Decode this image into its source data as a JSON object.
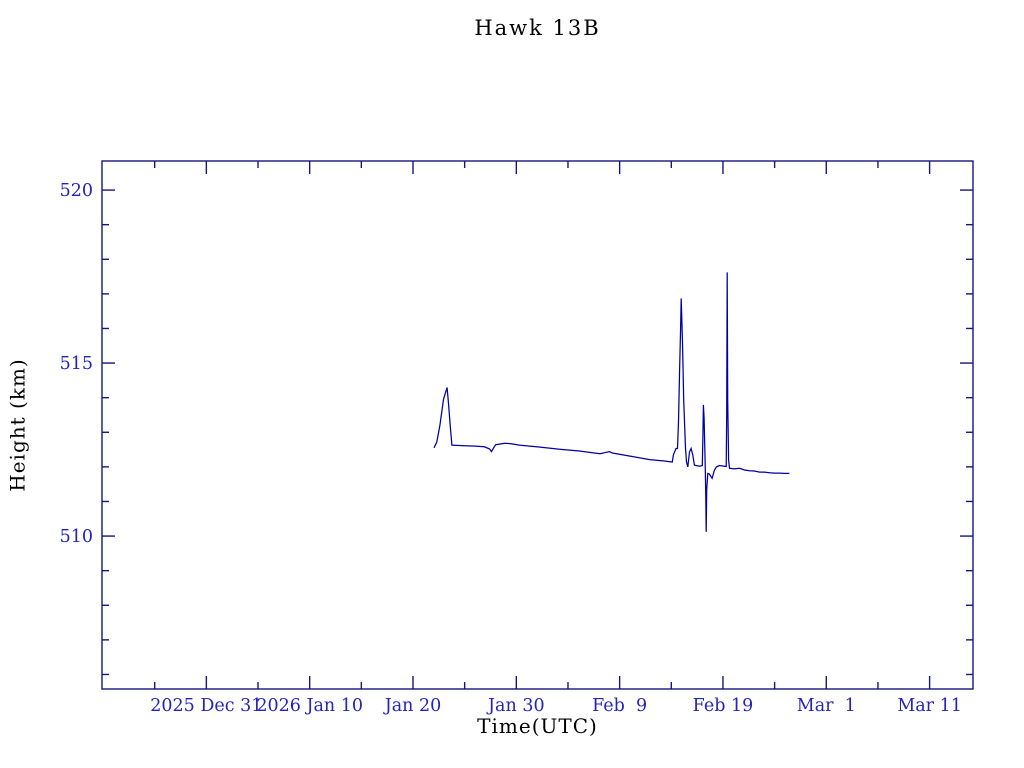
{
  "page": {
    "background": "#ffffff"
  },
  "chart_data": {
    "type": "line",
    "title": "Hawk 13B",
    "xlabel": "Time(UTC)",
    "ylabel": "Height (km)",
    "x_time_origin": "days since 2025 Dec 31 00:00 UTC",
    "xlim": [
      -10.1,
      74.2
    ],
    "ylim": [
      505.58,
      520.84
    ],
    "grid": false,
    "legend": "none",
    "axis_color": "#16167e",
    "text_color": "#2323be",
    "line_color": "#0000a0",
    "x_major_ticks": [
      {
        "t": 0,
        "label": "2025 Dec 31"
      },
      {
        "t": 10,
        "label": "2026 Jan 10"
      },
      {
        "t": 20,
        "label": "Jan 20"
      },
      {
        "t": 30,
        "label": "Jan 30"
      },
      {
        "t": 40,
        "label": "Feb  9"
      },
      {
        "t": 50,
        "label": "Feb 19"
      },
      {
        "t": 60,
        "label": "Mar  1"
      },
      {
        "t": 70,
        "label": "Mar 11"
      }
    ],
    "x_minor_ticks": [
      -5,
      5,
      15,
      25,
      35,
      45,
      55,
      65
    ],
    "y_major_ticks": [
      510,
      515,
      520
    ],
    "y_minor_ticks": [
      506,
      507,
      508,
      509,
      511,
      512,
      513,
      514,
      516,
      517,
      518,
      519
    ],
    "series": [
      {
        "name": "height-km",
        "points": [
          [
            22.03,
            512.55
          ],
          [
            22.3,
            512.72
          ],
          [
            22.6,
            513.2
          ],
          [
            22.95,
            513.95
          ],
          [
            23.1,
            514.1
          ],
          [
            23.3,
            514.29
          ],
          [
            23.45,
            513.8
          ],
          [
            23.6,
            513.2
          ],
          [
            23.77,
            512.63
          ],
          [
            24.2,
            512.62
          ],
          [
            25.0,
            512.61
          ],
          [
            26.0,
            512.6
          ],
          [
            26.9,
            512.58
          ],
          [
            27.4,
            512.52
          ],
          [
            27.6,
            512.44
          ],
          [
            27.8,
            512.55
          ],
          [
            28.0,
            512.64
          ],
          [
            28.9,
            512.68
          ],
          [
            29.5,
            512.67
          ],
          [
            30.3,
            512.63
          ],
          [
            32.3,
            512.57
          ],
          [
            34.2,
            512.51
          ],
          [
            36.1,
            512.46
          ],
          [
            38.1,
            512.38
          ],
          [
            38.7,
            512.42
          ],
          [
            39.0,
            512.44
          ],
          [
            39.3,
            512.4
          ],
          [
            41.0,
            512.31
          ],
          [
            42.9,
            512.21
          ],
          [
            44.3,
            512.17
          ],
          [
            45.1,
            512.14
          ],
          [
            45.2,
            512.35
          ],
          [
            45.45,
            512.53
          ],
          [
            45.6,
            512.53
          ],
          [
            45.7,
            513.3
          ],
          [
            45.8,
            514.8
          ],
          [
            45.9,
            516.0
          ],
          [
            45.96,
            516.87
          ],
          [
            46.08,
            515.6
          ],
          [
            46.2,
            513.93
          ],
          [
            46.37,
            512.54
          ],
          [
            46.47,
            512.14
          ],
          [
            46.6,
            512.0
          ],
          [
            46.76,
            512.43
          ],
          [
            46.92,
            512.53
          ],
          [
            47.08,
            512.34
          ],
          [
            47.24,
            512.05
          ],
          [
            47.73,
            512.02
          ],
          [
            48.0,
            512.04
          ],
          [
            48.06,
            512.87
          ],
          [
            48.11,
            513.79
          ],
          [
            48.17,
            513.41
          ],
          [
            48.28,
            512.05
          ],
          [
            48.33,
            511.33
          ],
          [
            48.38,
            510.12
          ],
          [
            48.43,
            511.33
          ],
          [
            48.53,
            511.81
          ],
          [
            48.69,
            511.79
          ],
          [
            48.95,
            511.67
          ],
          [
            49.18,
            511.91
          ],
          [
            49.37,
            512.0
          ],
          [
            49.66,
            512.04
          ],
          [
            50.31,
            512.01
          ],
          [
            50.36,
            513.5
          ],
          [
            50.41,
            517.62
          ],
          [
            50.46,
            513.93
          ],
          [
            50.55,
            512.2
          ],
          [
            50.63,
            511.96
          ],
          [
            51.11,
            511.94
          ],
          [
            51.6,
            511.96
          ],
          [
            52.08,
            511.91
          ],
          [
            52.56,
            511.89
          ],
          [
            53.05,
            511.88
          ],
          [
            53.53,
            511.85
          ],
          [
            54.01,
            511.85
          ],
          [
            54.5,
            511.83
          ],
          [
            54.98,
            511.82
          ],
          [
            55.47,
            511.82
          ],
          [
            55.95,
            511.81
          ],
          [
            56.43,
            511.81
          ]
        ]
      }
    ]
  }
}
